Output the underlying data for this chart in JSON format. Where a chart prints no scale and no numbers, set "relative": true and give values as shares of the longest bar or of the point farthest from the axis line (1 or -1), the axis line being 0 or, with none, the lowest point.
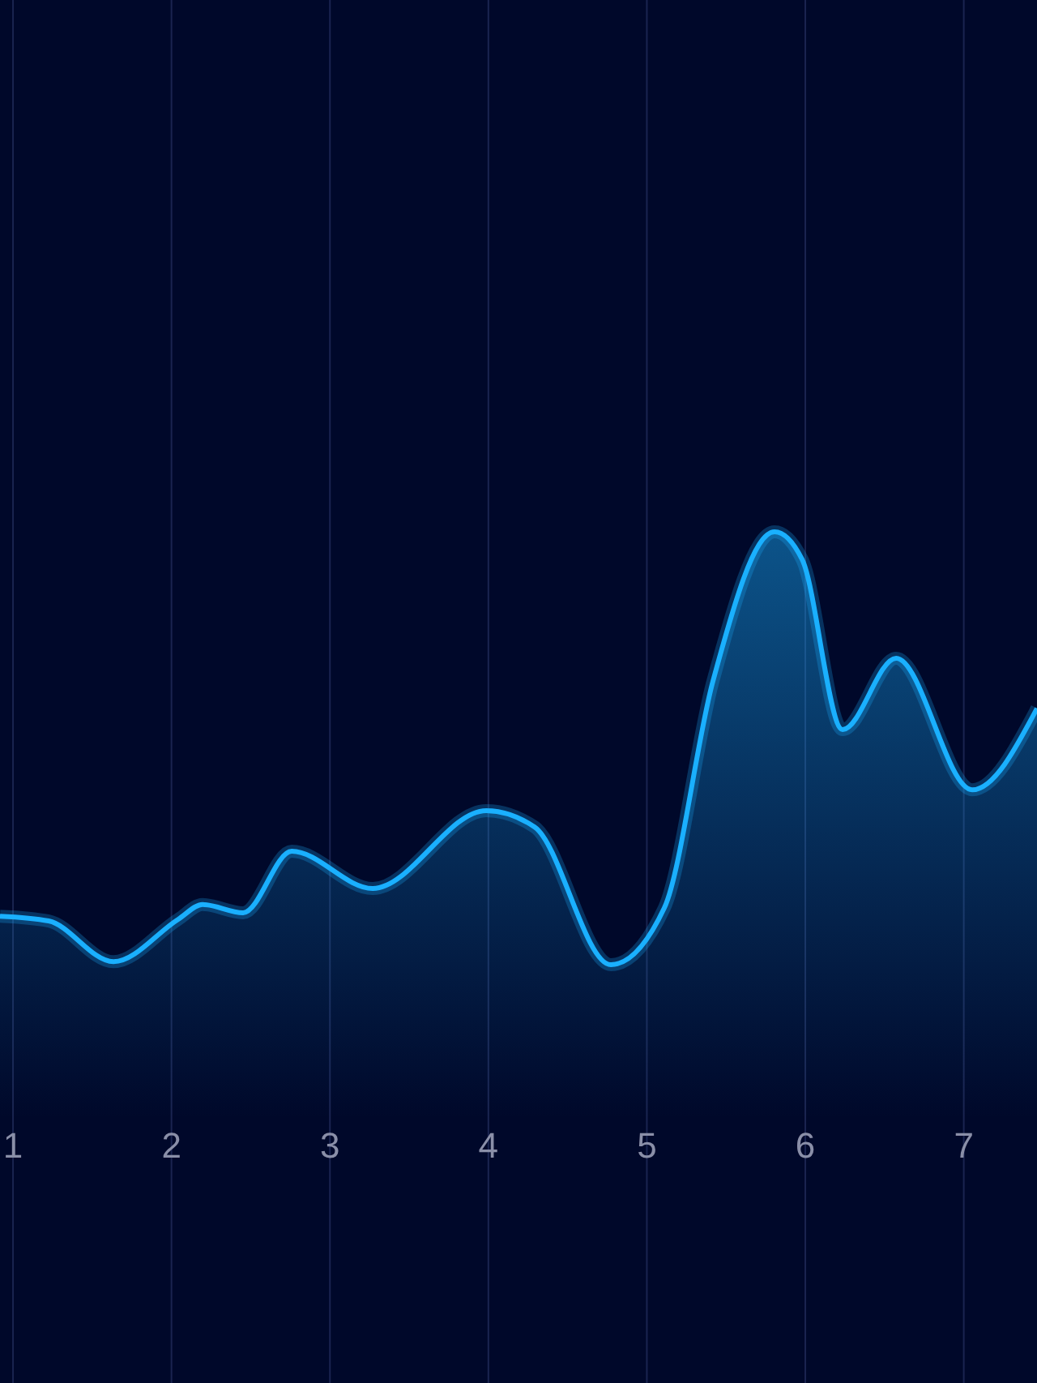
{
  "chart_data": {
    "type": "area",
    "relative": true,
    "x": [
      0.918,
      1.225,
      1.634,
      2.043,
      2.196,
      2.452,
      2.759,
      3.27,
      3.986,
      4.292,
      4.773,
      5.11,
      5.417,
      5.806,
      5.98,
      6.235,
      6.573,
      7.053,
      7.462
    ],
    "values": [
      0.112,
      0.101,
      0.007,
      0.105,
      0.139,
      0.12,
      0.262,
      0.176,
      0.356,
      0.318,
      0,
      0.131,
      0.655,
      1,
      0.936,
      0.543,
      0.708,
      0.404,
      0.592
    ],
    "color": "#1ab0ff",
    "xlim": [
      0.918,
      7.462
    ],
    "xticks": [
      1,
      2,
      3,
      4,
      5,
      6,
      7
    ],
    "grid": "x"
  }
}
